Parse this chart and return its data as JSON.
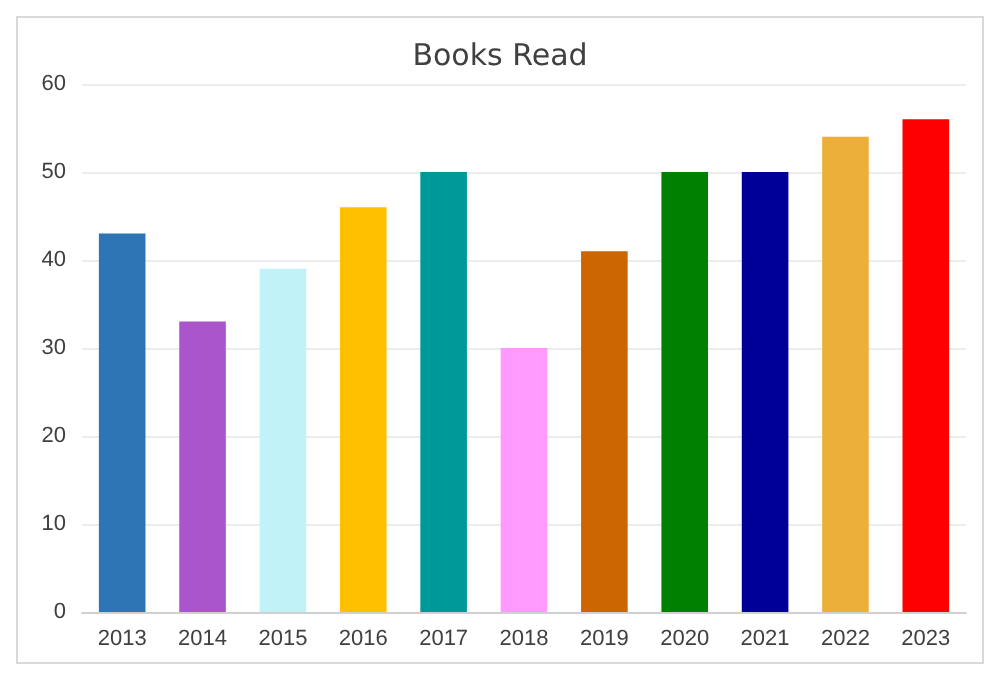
{
  "chart_data": {
    "type": "bar",
    "title": "Books Read",
    "categories": [
      "2013",
      "2014",
      "2015",
      "2016",
      "2017",
      "2018",
      "2019",
      "2020",
      "2021",
      "2022",
      "2023"
    ],
    "values": [
      43,
      33,
      39,
      46,
      50,
      30,
      41,
      50,
      50,
      54,
      56
    ],
    "colors": [
      "#2e75b6",
      "#aa55cc",
      "#c0f2f8",
      "#ffc000",
      "#009999",
      "#ff99ff",
      "#cc6600",
      "#008000",
      "#000099",
      "#ecb03a",
      "#ff0000"
    ],
    "ylim": [
      0,
      60
    ],
    "yticks": [
      0,
      10,
      20,
      30,
      40,
      50,
      60
    ],
    "grid": "y"
  }
}
